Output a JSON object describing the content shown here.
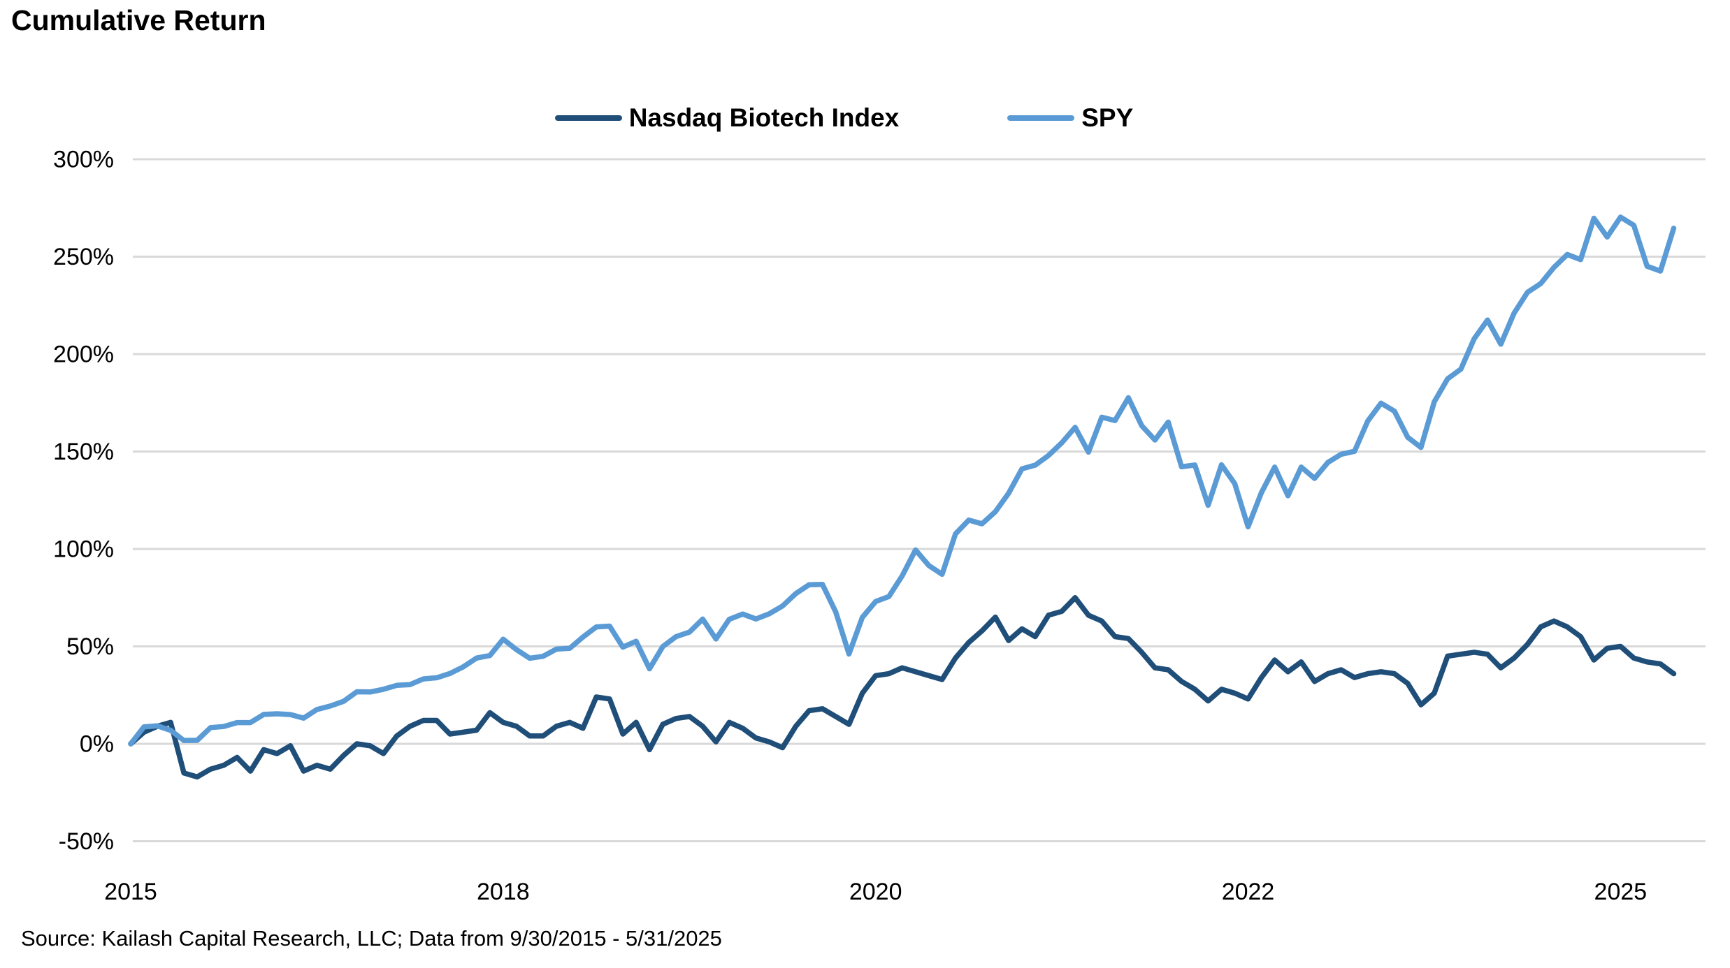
{
  "title": "Cumulative Return",
  "source_note": "Source: Kailash Capital Research, LLC; Data from 9/30/2015 - 5/31/2025",
  "legend": [
    {
      "label": "Nasdaq Biotech Index",
      "color": "#1F4E79"
    },
    {
      "label": "SPY",
      "color": "#5B9BD5"
    }
  ],
  "colors": {
    "nbi_line": "#1F4E79",
    "spy_line": "#5B9BD5",
    "gridline": "#D9D9D9",
    "text": "#000000",
    "background": "#FFFFFF"
  },
  "chart_data": {
    "type": "line",
    "title": "Cumulative Return",
    "x_unit": "monthly observations",
    "start_month": "2015-09",
    "end_month": "2025-05",
    "n_points": 117,
    "y_format": "percent",
    "ylim": [
      -50,
      300
    ],
    "y_ticks": [
      300,
      250,
      200,
      150,
      100,
      50,
      0,
      -50
    ],
    "x_tick_labels": [
      "2015",
      "2018",
      "2020",
      "2022",
      "2025"
    ],
    "x_tick_month_index": [
      0,
      28,
      56,
      84,
      112
    ],
    "grid": "horizontal-only",
    "legend_position": "top-center",
    "series": [
      {
        "name": "Nasdaq Biotech Index",
        "color": "#1F4E79",
        "values": [
          0,
          6,
          9,
          11,
          -15,
          -17,
          -13,
          -11,
          -7,
          -14,
          -3,
          -5,
          -1,
          -14,
          -11,
          -13,
          -6,
          0,
          -1,
          -5,
          4,
          9,
          12,
          12,
          5,
          6,
          7,
          16,
          11,
          9,
          4,
          4,
          9,
          11,
          8,
          24,
          23,
          5,
          11,
          -3,
          10,
          13,
          14,
          9,
          1,
          11,
          8,
          3,
          1,
          -2,
          9,
          17,
          18,
          14,
          10,
          26,
          35,
          36,
          39,
          37,
          35,
          33,
          44,
          52,
          58,
          65,
          53,
          59,
          55,
          66,
          68,
          75,
          66,
          63,
          55,
          54,
          47,
          39,
          38,
          32,
          28,
          22,
          28,
          26,
          23,
          34,
          43,
          37,
          42,
          32,
          36,
          38,
          34,
          36,
          37,
          36,
          31,
          20,
          26,
          45,
          46,
          47,
          46,
          39,
          44,
          51,
          60,
          63,
          60,
          55,
          43,
          49,
          50,
          44,
          42,
          41,
          36
        ]
      },
      {
        "name": "SPY",
        "color": "#5B9BD5",
        "values": [
          0,
          8.7,
          9.2,
          6.9,
          1.7,
          1.8,
          8.3,
          8.9,
          10.9,
          10.9,
          15.1,
          15.4,
          15.0,
          13.2,
          17.6,
          19.4,
          21.8,
          26.7,
          26.6,
          28.0,
          30.0,
          30.4,
          33.3,
          33.9,
          36.1,
          39.5,
          44.0,
          45.3,
          53.7,
          48.3,
          43.9,
          44.9,
          48.6,
          49.0,
          54.8,
          60.0,
          60.4,
          49.6,
          52.6,
          38.5,
          49.9,
          55.0,
          57.3,
          64.0,
          53.8,
          63.9,
          66.6,
          64.1,
          66.7,
          70.7,
          77.1,
          81.6,
          81.8,
          67.7,
          46.1,
          64.9,
          73.0,
          75.6,
          86.2,
          99.5,
          91.5,
          87.0,
          107.7,
          114.8,
          112.9,
          119.1,
          128.6,
          141.1,
          143.0,
          148.0,
          154.5,
          162.4,
          149.7,
          167.6,
          165.9,
          177.6,
          163.3,
          155.9,
          165.1,
          142.2,
          143.1,
          122.4,
          143.2,
          133.5,
          111.4,
          128.9,
          142.0,
          127.3,
          142.0,
          136.2,
          144.4,
          148.6,
          150.1,
          165.7,
          174.8,
          170.7,
          157.3,
          152.1,
          175.5,
          187.3,
          192.3,
          207.9,
          217.5,
          205.1,
          221.0,
          231.7,
          236.2,
          244.5,
          251.1,
          248.5,
          269.7,
          260.1,
          270.3,
          266.1,
          245.1,
          242.6,
          264.6
        ]
      }
    ]
  }
}
